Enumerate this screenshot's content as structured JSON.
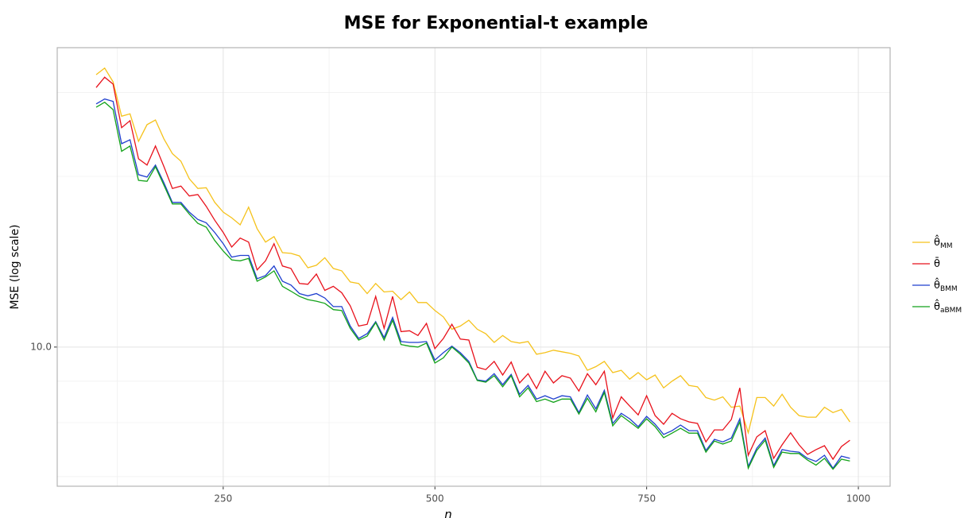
{
  "chart_data": {
    "type": "line",
    "title": "MSE for Exponential-t example",
    "xlabel": "n",
    "ylabel": "MSE (log scale)",
    "x": [
      100,
      110,
      120,
      130,
      140,
      150,
      160,
      170,
      180,
      190,
      200,
      210,
      220,
      230,
      240,
      250,
      260,
      270,
      280,
      290,
      300,
      310,
      320,
      330,
      340,
      350,
      360,
      370,
      380,
      390,
      400,
      410,
      420,
      430,
      440,
      450,
      460,
      470,
      480,
      490,
      500,
      510,
      520,
      530,
      540,
      550,
      560,
      570,
      580,
      590,
      600,
      610,
      620,
      630,
      640,
      650,
      660,
      670,
      680,
      690,
      700,
      710,
      720,
      730,
      740,
      750,
      760,
      770,
      780,
      790,
      800,
      810,
      820,
      830,
      840,
      850,
      860,
      870,
      880,
      890,
      900,
      910,
      920,
      930,
      940,
      950,
      960,
      970,
      980,
      990
    ],
    "series": [
      {
        "name": "θ̂",
        "subscript": "MM",
        "color": "#f5c21b",
        "values": [
          24.03,
          24.54,
          23.48,
          21.02,
          21.18,
          19.39,
          20.46,
          20.77,
          19.54,
          18.64,
          18.19,
          17.19,
          16.66,
          16.7,
          15.93,
          15.44,
          15.16,
          14.82,
          15.69,
          14.64,
          14.02,
          14.27,
          13.55,
          13.52,
          13.41,
          12.91,
          13.01,
          13.33,
          12.88,
          12.78,
          12.33,
          12.27,
          11.88,
          12.27,
          11.94,
          11.97,
          11.65,
          11.94,
          11.54,
          11.54,
          11.25,
          11.02,
          10.59,
          10.7,
          10.9,
          10.59,
          10.44,
          10.15,
          10.38,
          10.18,
          10.13,
          10.18,
          9.77,
          9.82,
          9.9,
          9.85,
          9.8,
          9.72,
          9.28,
          9.39,
          9.55,
          9.21,
          9.28,
          9.02,
          9.21,
          9.0,
          9.14,
          8.77,
          8.96,
          9.12,
          8.84,
          8.8,
          8.5,
          8.43,
          8.52,
          8.24,
          8.27,
          7.59,
          8.5,
          8.5,
          8.27,
          8.59,
          8.24,
          8.02,
          7.98,
          7.98,
          8.24,
          8.1,
          8.18,
          7.86
        ]
      },
      {
        "name": "θ̄",
        "color": "#e8111b",
        "values": [
          23.05,
          23.83,
          23.31,
          20.26,
          20.72,
          18.33,
          17.96,
          19.1,
          17.87,
          16.66,
          16.79,
          16.26,
          16.34,
          15.73,
          15.04,
          14.46,
          13.8,
          14.2,
          14.02,
          12.82,
          13.2,
          13.95,
          12.98,
          12.88,
          12.27,
          12.24,
          12.65,
          12.0,
          12.16,
          11.91,
          11.42,
          10.7,
          10.76,
          11.77,
          10.62,
          11.77,
          10.51,
          10.54,
          10.38,
          10.79,
          9.95,
          10.28,
          10.76,
          10.26,
          10.23,
          9.37,
          9.3,
          9.55,
          9.14,
          9.53,
          8.91,
          9.18,
          8.75,
          9.25,
          8.91,
          9.12,
          9.05,
          8.68,
          9.18,
          8.86,
          9.25,
          7.96,
          8.52,
          8.27,
          8.04,
          8.55,
          8.02,
          7.8,
          8.08,
          7.94,
          7.86,
          7.82,
          7.37,
          7.66,
          7.66,
          7.92,
          8.77,
          7.06,
          7.49,
          7.64,
          6.99,
          7.3,
          7.59,
          7.3,
          7.08,
          7.19,
          7.28,
          6.97,
          7.26,
          7.41
        ]
      },
      {
        "name": "θ̂",
        "subscript": "BMM",
        "color": "#1f3fcf",
        "values": [
          21.87,
          22.22,
          22.05,
          19.24,
          19.49,
          17.42,
          17.28,
          17.96,
          16.96,
          15.93,
          15.93,
          15.44,
          15.08,
          14.92,
          14.46,
          13.95,
          13.36,
          13.43,
          13.43,
          12.46,
          12.59,
          12.98,
          12.36,
          12.21,
          11.88,
          11.79,
          11.88,
          11.71,
          11.39,
          11.39,
          10.7,
          10.28,
          10.44,
          10.85,
          10.31,
          11.0,
          10.18,
          10.15,
          10.15,
          10.18,
          9.59,
          9.82,
          10.03,
          9.82,
          9.55,
          9.0,
          8.96,
          9.18,
          8.86,
          9.16,
          8.59,
          8.84,
          8.46,
          8.55,
          8.46,
          8.55,
          8.52,
          8.1,
          8.57,
          8.2,
          8.7,
          7.82,
          8.08,
          7.94,
          7.74,
          8.0,
          7.8,
          7.55,
          7.64,
          7.78,
          7.64,
          7.64,
          7.17,
          7.43,
          7.37,
          7.46,
          7.94,
          6.81,
          7.22,
          7.46,
          6.83,
          7.19,
          7.15,
          7.13,
          6.99,
          6.92,
          7.06,
          6.77,
          7.04,
          6.99
        ]
      },
      {
        "name": "θ̂",
        "subscript": "aBMM",
        "color": "#13a21a",
        "values": [
          21.64,
          21.99,
          21.47,
          18.78,
          19.1,
          17.1,
          17.05,
          17.87,
          16.83,
          15.85,
          15.85,
          15.34,
          14.89,
          14.71,
          14.09,
          13.62,
          13.24,
          13.2,
          13.3,
          12.36,
          12.53,
          12.78,
          12.16,
          11.97,
          11.77,
          11.65,
          11.59,
          11.51,
          11.28,
          11.25,
          10.62,
          10.23,
          10.36,
          10.82,
          10.23,
          10.9,
          10.08,
          10.03,
          10.0,
          10.13,
          9.5,
          9.66,
          10.0,
          9.77,
          9.5,
          8.98,
          8.93,
          9.12,
          8.8,
          9.12,
          8.52,
          8.77,
          8.39,
          8.46,
          8.37,
          8.46,
          8.46,
          8.06,
          8.48,
          8.12,
          8.64,
          7.76,
          8.02,
          7.86,
          7.7,
          7.94,
          7.74,
          7.47,
          7.58,
          7.7,
          7.58,
          7.58,
          7.13,
          7.39,
          7.32,
          7.39,
          7.86,
          6.77,
          7.17,
          7.41,
          6.79,
          7.13,
          7.1,
          7.1,
          6.95,
          6.84,
          6.99,
          6.75,
          6.97,
          6.93
        ]
      }
    ],
    "xlim": [
      54,
      1037.5
    ],
    "xticks": [
      250,
      500,
      750,
      1000
    ],
    "xminor": [
      125,
      375,
      625,
      875
    ],
    "ylim": [
      6.39,
      26.21
    ],
    "yticks": [
      {
        "value": 10,
        "label": "10.0"
      }
    ],
    "yminor": [
      6.59,
      7.84,
      8.96,
      17.32,
      22.68
    ],
    "log_y": true,
    "grid": true,
    "legend": "right"
  }
}
